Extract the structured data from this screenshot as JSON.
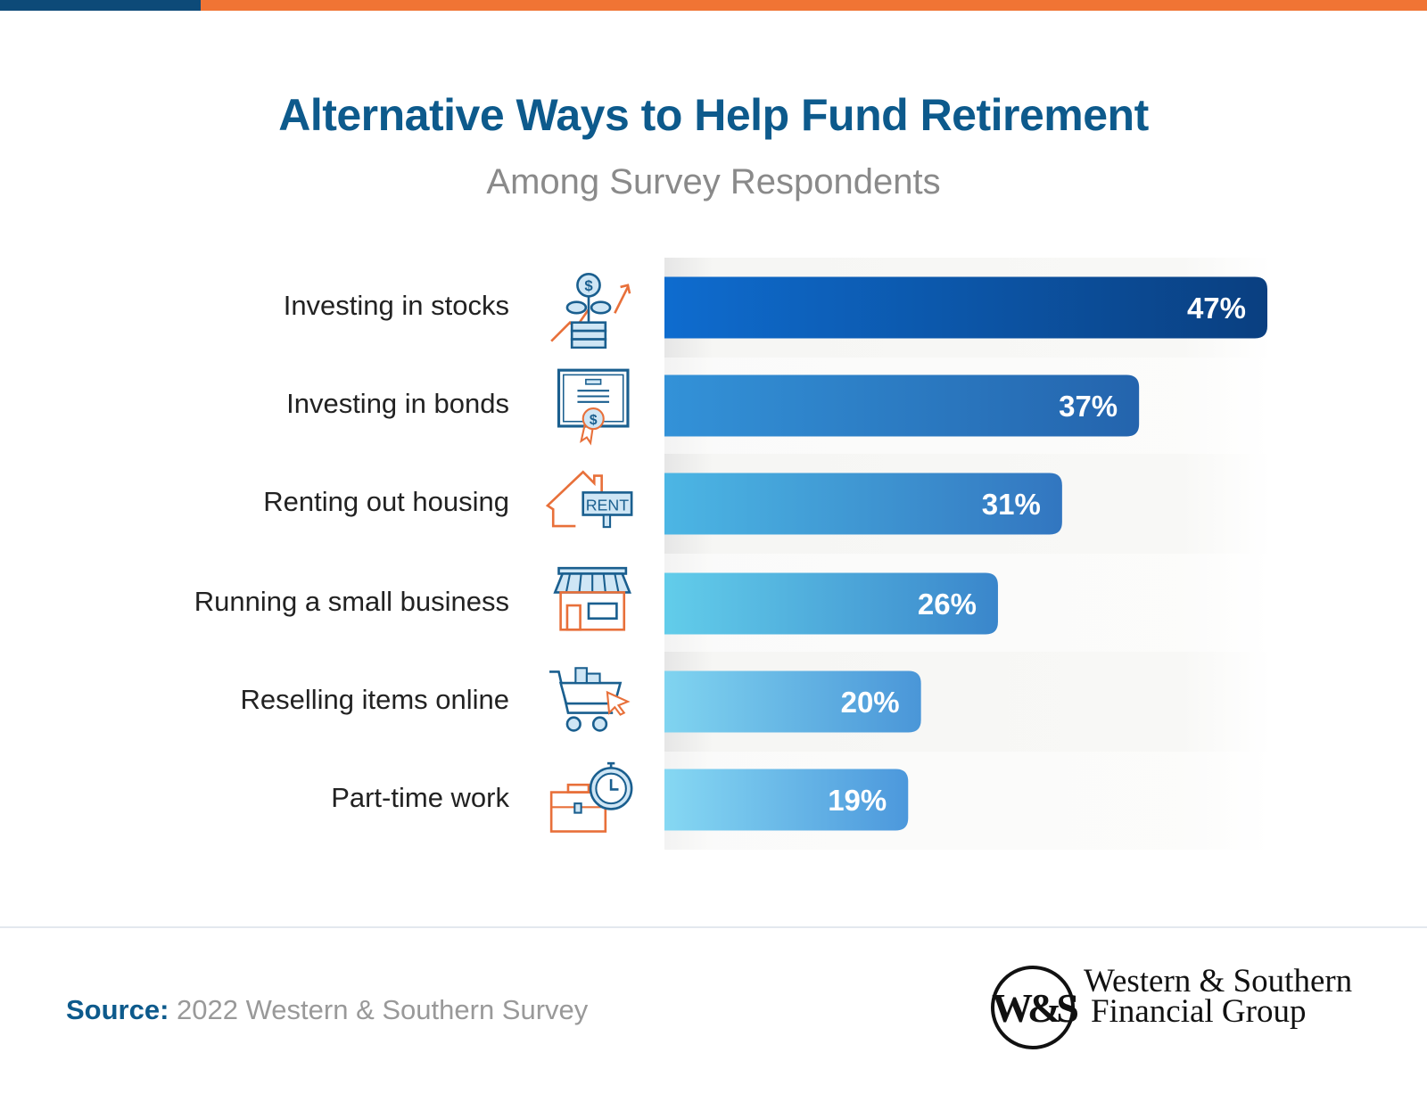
{
  "header": {
    "title": "Alternative Ways to Help Fund Retirement",
    "subtitle": "Among Survey Respondents"
  },
  "colors": {
    "top_bar_dark": "#0d4a78",
    "top_bar_accent": "#f07434",
    "title": "#0d5a8c",
    "icon_blue": "#1a5f8f",
    "icon_orange": "#e8703a"
  },
  "chart_data": {
    "type": "bar",
    "orientation": "horizontal",
    "title": "Alternative Ways to Help Fund Retirement",
    "subtitle": "Among Survey Respondents",
    "categories": [
      "Investing in stocks",
      "Investing in bonds",
      "Renting out housing",
      "Running a small business",
      "Reselling items online",
      "Part-time work"
    ],
    "values": [
      47,
      37,
      31,
      26,
      20,
      19
    ],
    "data_labels": [
      "47%",
      "37%",
      "31%",
      "26%",
      "20%",
      "19%"
    ],
    "icons": [
      "plant-coins-growth-icon",
      "certificate-bond-icon",
      "house-rent-sign-icon",
      "storefront-icon",
      "shopping-cart-cursor-icon",
      "briefcase-stopwatch-icon"
    ],
    "bar_gradients": [
      [
        "#0e6ccf",
        "#0a3f80"
      ],
      [
        "#3392d8",
        "#2464ad"
      ],
      [
        "#4cb6e4",
        "#3276c0"
      ],
      [
        "#62cdea",
        "#3a86cb"
      ],
      [
        "#80d4f0",
        "#4a96d8"
      ],
      [
        "#86d8f3",
        "#4c98dc"
      ]
    ],
    "xlim": [
      0,
      47
    ],
    "grid": false,
    "legend": "none"
  },
  "footer": {
    "source_label": "Source:",
    "source_text": " 2022 Western & Southern Survey",
    "logo_line1": "Western & Southern",
    "logo_line2": "Financial Group",
    "logo_mark": "W&S"
  }
}
